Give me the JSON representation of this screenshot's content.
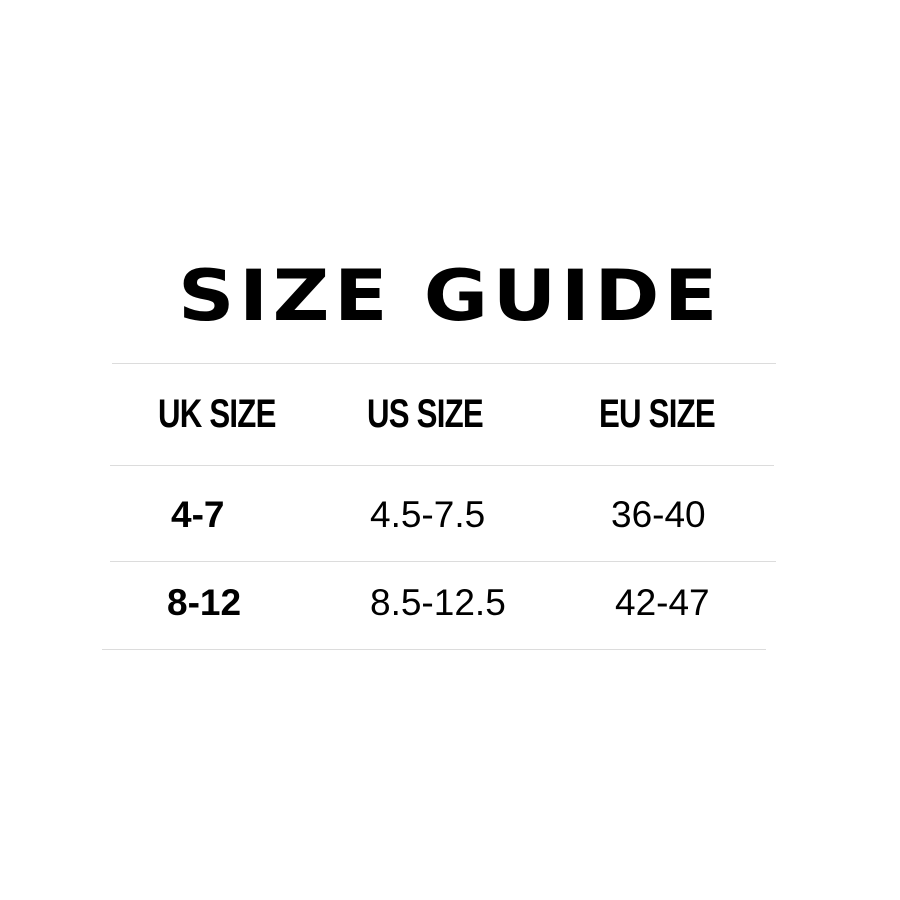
{
  "title": "SIZE GUIDE",
  "headers": [
    "UK SIZE",
    "US SIZE",
    "EU SIZE"
  ],
  "rows": [
    [
      "4-7",
      "4.5-7.5",
      "36-40"
    ],
    [
      "8-12",
      "8.5-12.5",
      "42-47"
    ]
  ]
}
